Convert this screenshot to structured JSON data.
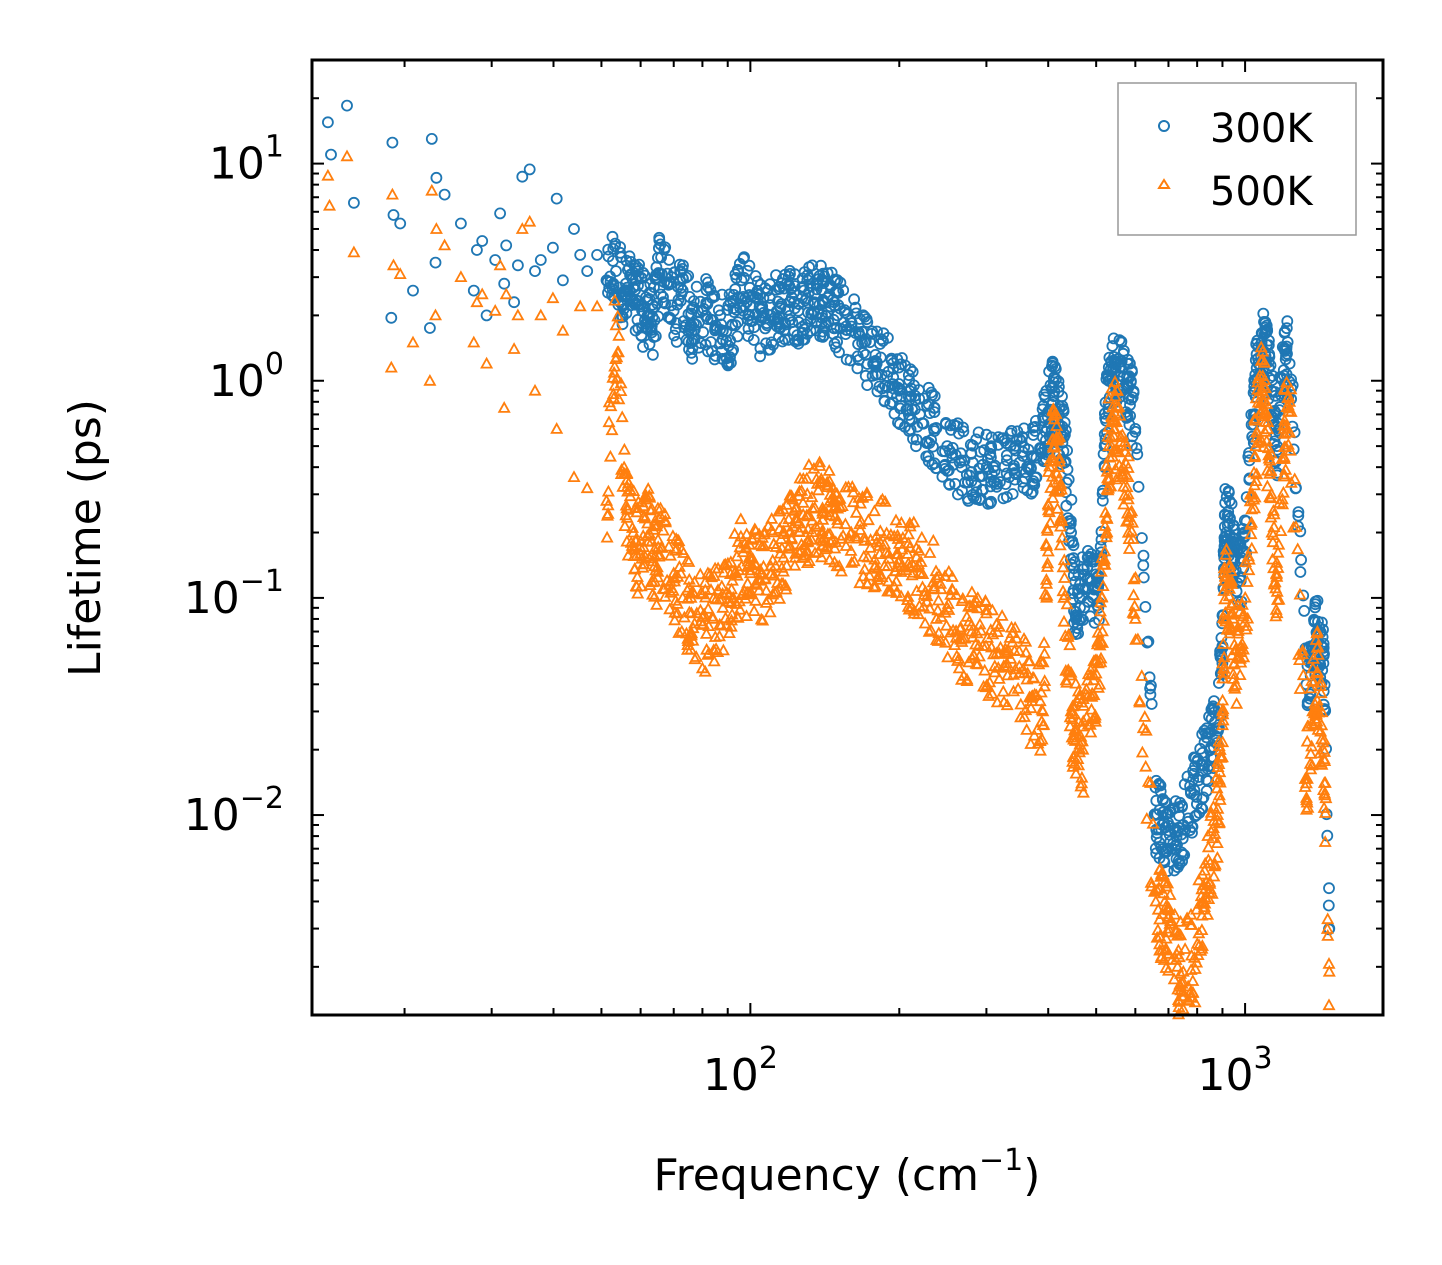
{
  "chart_data": {
    "type": "scatter",
    "xscale": "log",
    "yscale": "log",
    "xlim": [
      13,
      1900
    ],
    "ylim": [
      0.0012,
      30
    ],
    "xlabel": {
      "text": "Frequency (cm",
      "sup": "−1",
      "suffix": ")"
    },
    "ylabel": "Lifetime (ps)",
    "x_ticks": [
      {
        "value": 100,
        "base": "10",
        "exp": "2"
      },
      {
        "value": 1000,
        "base": "10",
        "exp": "3"
      }
    ],
    "y_ticks": [
      {
        "value": 10,
        "base": "10",
        "exp": "1"
      },
      {
        "value": 1,
        "base": "10",
        "exp": "0"
      },
      {
        "value": 0.1,
        "base": "10",
        "exp": "−1"
      },
      {
        "value": 0.01,
        "base": "10",
        "exp": "−2"
      }
    ],
    "legend": {
      "position": "top-right"
    },
    "colors": {
      "s300": "#1f77b4",
      "s500": "#ff7f0e"
    },
    "series": [
      {
        "name": "300K",
        "marker": "circle",
        "color": "#1f77b4",
        "points": [
          [
            14,
            15.5
          ],
          [
            14.2,
            11
          ],
          [
            15.3,
            18.5
          ],
          [
            15.8,
            6.6
          ],
          [
            18.9,
            12.5
          ],
          [
            19,
            5.8
          ],
          [
            18.8,
            1.95
          ],
          [
            19.6,
            5.3
          ],
          [
            20.8,
            2.6
          ],
          [
            22.7,
            13
          ],
          [
            23.2,
            8.6
          ],
          [
            23.1,
            3.5
          ],
          [
            22.5,
            1.75
          ],
          [
            24.1,
            7.2
          ],
          [
            26,
            5.3
          ],
          [
            27.6,
            2.6
          ],
          [
            28,
            4.0
          ],
          [
            28.7,
            4.4
          ],
          [
            29.3,
            2.0
          ],
          [
            30.5,
            3.6
          ],
          [
            31.2,
            5.9
          ],
          [
            31.8,
            2.8
          ],
          [
            32.1,
            4.2
          ],
          [
            33.3,
            2.3
          ],
          [
            33.9,
            3.4
          ],
          [
            34.6,
            8.7
          ],
          [
            35.8,
            9.4
          ],
          [
            36.7,
            3.2
          ],
          [
            37.7,
            3.6
          ],
          [
            39.9,
            4.1
          ],
          [
            40.6,
            6.9
          ],
          [
            41.8,
            2.9
          ],
          [
            44,
            5.0
          ],
          [
            45.3,
            3.8
          ],
          [
            46.8,
            3.2
          ],
          [
            49,
            3.8
          ],
          [
            51.2,
            2.9
          ],
          [
            53.5,
            3.2
          ],
          [
            56,
            2.5
          ],
          [
            58,
            2.7
          ],
          [
            60,
            2.2
          ],
          [
            62,
            2.0
          ],
          [
            64,
            1.9
          ],
          [
            66,
            3.7
          ],
          [
            70,
            2.1
          ],
          [
            73,
            2.6
          ],
          [
            76,
            1.8
          ],
          [
            80,
            2.1
          ],
          [
            84,
            1.9
          ],
          [
            88,
            1.7
          ],
          [
            92,
            1.8
          ],
          [
            96,
            2.9
          ],
          [
            100,
            2.2
          ],
          [
            105,
            1.9
          ],
          [
            110,
            2.0
          ],
          [
            115,
            2.2
          ],
          [
            120,
            2.3
          ],
          [
            125,
            2.1
          ],
          [
            130,
            2.4
          ],
          [
            135,
            2.5
          ],
          [
            140,
            2.3
          ],
          [
            145,
            2.2
          ],
          [
            150,
            2.0
          ],
          [
            160,
            1.7
          ],
          [
            170,
            1.5
          ],
          [
            180,
            1.2
          ],
          [
            190,
            1.1
          ],
          [
            200,
            0.9
          ],
          [
            210,
            0.82
          ],
          [
            220,
            0.7
          ],
          [
            235,
            0.6
          ],
          [
            250,
            0.5
          ],
          [
            265,
            0.42
          ],
          [
            280,
            0.38
          ],
          [
            295,
            0.41
          ],
          [
            310,
            0.4
          ],
          [
            330,
            0.43
          ],
          [
            350,
            0.42
          ],
          [
            370,
            0.45
          ],
          [
            390,
            0.55
          ],
          [
            400,
            0.72
          ],
          [
            410,
            0.85
          ],
          [
            420,
            0.7
          ],
          [
            430,
            0.55
          ],
          [
            445,
            0.2
          ],
          [
            455,
            0.08
          ],
          [
            470,
            0.11
          ],
          [
            490,
            0.12
          ],
          [
            505,
            0.09
          ],
          [
            520,
            0.5
          ],
          [
            530,
            1.0
          ],
          [
            545,
            1.1
          ],
          [
            560,
            1.15
          ],
          [
            580,
            0.95
          ],
          [
            600,
            0.6
          ],
          [
            660,
            0.01
          ],
          [
            680,
            0.009
          ],
          [
            700,
            0.007
          ],
          [
            730,
            0.0085
          ],
          [
            750,
            0.009
          ],
          [
            790,
            0.013
          ],
          [
            820,
            0.016
          ],
          [
            850,
            0.02
          ],
          [
            880,
            0.025
          ],
          [
            900,
            0.06
          ],
          [
            910,
            0.24
          ],
          [
            930,
            0.22
          ],
          [
            950,
            0.15
          ],
          [
            980,
            0.12
          ],
          [
            1020,
            0.35
          ],
          [
            1050,
            1.0
          ],
          [
            1080,
            1.5
          ],
          [
            1100,
            1.3
          ],
          [
            1130,
            0.9
          ],
          [
            1160,
            0.5
          ],
          [
            1200,
            1.4
          ],
          [
            1230,
            1.2
          ],
          [
            1330,
            0.04
          ],
          [
            1370,
            0.06
          ],
          [
            1400,
            0.07
          ],
          [
            1440,
            0.05
          ],
          [
            1480,
            0.003
          ]
        ]
      },
      {
        "name": "500K",
        "marker": "triangle",
        "color": "#ff7f0e",
        "points": [
          [
            14,
            8.8
          ],
          [
            14.1,
            6.4
          ],
          [
            15.3,
            10.8
          ],
          [
            15.8,
            3.9
          ],
          [
            18.9,
            7.2
          ],
          [
            19,
            3.4
          ],
          [
            18.8,
            1.15
          ],
          [
            19.6,
            3.1
          ],
          [
            20.8,
            1.5
          ],
          [
            22.7,
            7.5
          ],
          [
            23.2,
            5.0
          ],
          [
            23.1,
            2.0
          ],
          [
            22.5,
            1.0
          ],
          [
            24.1,
            4.2
          ],
          [
            26,
            3.0
          ],
          [
            27.6,
            1.5
          ],
          [
            28,
            2.3
          ],
          [
            28.7,
            2.5
          ],
          [
            29.3,
            1.2
          ],
          [
            30.5,
            2.1
          ],
          [
            31.2,
            3.4
          ],
          [
            31.8,
            0.75
          ],
          [
            32.1,
            2.5
          ],
          [
            33.3,
            1.4
          ],
          [
            33.9,
            2.0
          ],
          [
            34.6,
            5.0
          ],
          [
            35.8,
            5.4
          ],
          [
            36.7,
            0.9
          ],
          [
            37.7,
            2.0
          ],
          [
            39.9,
            2.4
          ],
          [
            40.6,
            0.6
          ],
          [
            41.8,
            1.7
          ],
          [
            44,
            0.36
          ],
          [
            45.3,
            2.2
          ],
          [
            46.8,
            0.32
          ],
          [
            49,
            2.2
          ],
          [
            51.2,
            0.28
          ],
          [
            53.5,
            1.8
          ],
          [
            56,
            0.24
          ],
          [
            58,
            0.2
          ],
          [
            60,
            0.16
          ],
          [
            62,
            0.22
          ],
          [
            64,
            0.14
          ],
          [
            66,
            0.17
          ],
          [
            70,
            0.13
          ],
          [
            73,
            0.1
          ],
          [
            76,
            0.085
          ],
          [
            80,
            0.075
          ],
          [
            84,
            0.08
          ],
          [
            88,
            0.09
          ],
          [
            92,
            0.12
          ],
          [
            96,
            0.14
          ],
          [
            100,
            0.13
          ],
          [
            105,
            0.12
          ],
          [
            110,
            0.14
          ],
          [
            115,
            0.16
          ],
          [
            120,
            0.2
          ],
          [
            125,
            0.22
          ],
          [
            130,
            0.24
          ],
          [
            135,
            0.26
          ],
          [
            140,
            0.25
          ],
          [
            145,
            0.24
          ],
          [
            150,
            0.22
          ],
          [
            160,
            0.2
          ],
          [
            170,
            0.19
          ],
          [
            180,
            0.18
          ],
          [
            190,
            0.16
          ],
          [
            200,
            0.15
          ],
          [
            210,
            0.14
          ],
          [
            220,
            0.13
          ],
          [
            235,
            0.11
          ],
          [
            250,
            0.09
          ],
          [
            265,
            0.065
          ],
          [
            280,
            0.07
          ],
          [
            295,
            0.06
          ],
          [
            310,
            0.055
          ],
          [
            330,
            0.05
          ],
          [
            350,
            0.045
          ],
          [
            370,
            0.035
          ],
          [
            390,
            0.03
          ],
          [
            400,
            0.27
          ],
          [
            410,
            0.5
          ],
          [
            420,
            0.4
          ],
          [
            430,
            0.1
          ],
          [
            445,
            0.03
          ],
          [
            455,
            0.025
          ],
          [
            470,
            0.02
          ],
          [
            490,
            0.035
          ],
          [
            505,
            0.05
          ],
          [
            520,
            0.15
          ],
          [
            530,
            0.5
          ],
          [
            545,
            0.6
          ],
          [
            560,
            0.55
          ],
          [
            580,
            0.3
          ],
          [
            600,
            0.08
          ],
          [
            660,
            0.004
          ],
          [
            680,
            0.0035
          ],
          [
            700,
            0.003
          ],
          [
            730,
            0.002
          ],
          [
            750,
            0.0019
          ],
          [
            790,
            0.0022
          ],
          [
            820,
            0.004
          ],
          [
            850,
            0.006
          ],
          [
            880,
            0.01
          ],
          [
            900,
            0.03
          ],
          [
            910,
            0.12
          ],
          [
            930,
            0.11
          ],
          [
            950,
            0.05
          ],
          [
            980,
            0.06
          ],
          [
            1020,
            0.15
          ],
          [
            1050,
            0.5
          ],
          [
            1080,
            0.9
          ],
          [
            1100,
            0.7
          ],
          [
            1130,
            0.3
          ],
          [
            1160,
            0.085
          ],
          [
            1200,
            0.6
          ],
          [
            1230,
            0.8
          ],
          [
            1330,
            0.014
          ],
          [
            1370,
            0.03
          ],
          [
            1400,
            0.045
          ],
          [
            1440,
            0.02
          ],
          [
            1480,
            0.0019
          ]
        ]
      }
    ]
  },
  "legend": {
    "items": [
      "300K",
      "500K"
    ]
  }
}
